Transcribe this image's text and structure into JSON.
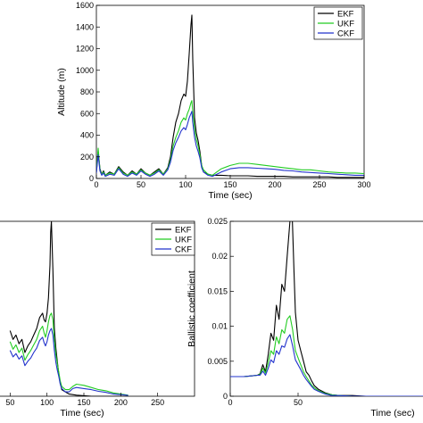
{
  "chart_data": [
    {
      "type": "line",
      "title": "",
      "xlabel": "Time (sec)",
      "ylabel": "Altitude (m)",
      "xlim": [
        0,
        300
      ],
      "ylim": [
        0,
        1600
      ],
      "xticks": [
        0,
        50,
        100,
        150,
        200,
        250,
        300
      ],
      "yticks": [
        0,
        200,
        400,
        600,
        800,
        1000,
        1200,
        1400,
        1600
      ],
      "grid": false,
      "legend": "top-right",
      "series": [
        {
          "name": "EKF",
          "color": "#000000",
          "x": [
            0,
            2,
            4,
            6,
            8,
            10,
            15,
            20,
            25,
            30,
            35,
            40,
            45,
            50,
            55,
            60,
            65,
            70,
            75,
            80,
            83,
            86,
            89,
            92,
            95,
            98,
            100,
            102,
            104,
            106,
            107,
            108,
            110,
            112,
            114,
            116,
            118,
            120,
            125,
            130,
            140,
            150,
            160,
            170,
            180,
            190,
            200,
            210,
            220,
            230,
            240,
            250,
            260,
            270,
            280,
            290,
            300
          ],
          "y": [
            60,
            250,
            90,
            40,
            70,
            30,
            60,
            40,
            110,
            60,
            30,
            70,
            40,
            90,
            50,
            30,
            60,
            90,
            40,
            100,
            200,
            380,
            520,
            600,
            720,
            780,
            760,
            900,
            1150,
            1420,
            1510,
            1100,
            560,
            420,
            350,
            250,
            120,
            60,
            40,
            30,
            30,
            25,
            25,
            25,
            20,
            20,
            20,
            20,
            15,
            15,
            15,
            15,
            15,
            10,
            10,
            10,
            10
          ]
        },
        {
          "name": "UKF",
          "color": "#22cc22",
          "x": [
            0,
            2,
            4,
            6,
            8,
            10,
            15,
            20,
            25,
            30,
            35,
            40,
            45,
            50,
            55,
            60,
            65,
            70,
            75,
            80,
            83,
            86,
            89,
            92,
            95,
            98,
            100,
            102,
            104,
            106,
            107,
            108,
            110,
            112,
            114,
            116,
            118,
            120,
            125,
            130,
            135,
            140,
            150,
            160,
            170,
            180,
            190,
            200,
            210,
            220,
            230,
            240,
            250,
            260,
            270,
            280,
            290,
            300
          ],
          "y": [
            60,
            280,
            80,
            40,
            60,
            30,
            50,
            40,
            100,
            50,
            30,
            60,
            40,
            80,
            50,
            30,
            50,
            80,
            40,
            90,
            170,
            300,
            380,
            440,
            520,
            560,
            540,
            600,
            640,
            700,
            720,
            620,
            460,
            360,
            300,
            220,
            120,
            80,
            40,
            30,
            60,
            90,
            120,
            140,
            140,
            130,
            120,
            110,
            100,
            90,
            80,
            80,
            70,
            60,
            55,
            50,
            50,
            45
          ]
        },
        {
          "name": "CKF",
          "color": "#2233cc",
          "x": [
            0,
            2,
            4,
            6,
            8,
            10,
            15,
            20,
            25,
            30,
            35,
            40,
            45,
            50,
            55,
            60,
            65,
            70,
            75,
            80,
            83,
            86,
            89,
            92,
            95,
            98,
            100,
            102,
            104,
            106,
            107,
            108,
            110,
            112,
            114,
            116,
            118,
            120,
            125,
            130,
            135,
            140,
            150,
            160,
            170,
            180,
            190,
            200,
            210,
            220,
            230,
            240,
            250,
            260,
            270,
            280,
            290,
            300
          ],
          "y": [
            50,
            220,
            70,
            30,
            50,
            20,
            40,
            30,
            90,
            40,
            20,
            50,
            30,
            70,
            40,
            20,
            40,
            70,
            30,
            80,
            150,
            260,
            330,
            380,
            440,
            470,
            450,
            500,
            560,
            600,
            620,
            520,
            380,
            300,
            250,
            190,
            100,
            60,
            30,
            20,
            40,
            60,
            90,
            100,
            100,
            95,
            90,
            85,
            75,
            70,
            60,
            55,
            50,
            45,
            40,
            35,
            30,
            30
          ]
        }
      ]
    },
    {
      "type": "line",
      "title": "",
      "xlabel": "Time (sec)",
      "ylabel": "",
      "xlim": [
        0,
        300
      ],
      "ylim": [
        0,
        1600
      ],
      "xticks": [
        50,
        100,
        150,
        200,
        250
      ],
      "xtick_labels": [
        "50",
        "100",
        "150",
        "200",
        "250"
      ],
      "grid": false,
      "legend": "top-right",
      "series": [
        {
          "name": "EKF",
          "color": "#000000",
          "x": [
            50,
            54,
            58,
            62,
            66,
            70,
            74,
            78,
            82,
            86,
            90,
            94,
            96,
            98,
            100,
            102,
            104,
            105,
            106,
            108,
            110,
            112,
            114,
            116,
            118,
            120,
            125,
            130,
            140,
            150,
            160,
            170,
            180,
            190,
            200,
            210
          ],
          "y": [
            600,
            520,
            560,
            480,
            520,
            400,
            460,
            500,
            560,
            620,
            720,
            760,
            700,
            680,
            760,
            900,
            1200,
            1500,
            1600,
            1150,
            620,
            440,
            320,
            200,
            120,
            60,
            40,
            20,
            10,
            5,
            0,
            0,
            0,
            0,
            0,
            0
          ]
        },
        {
          "name": "UKF",
          "color": "#22cc22",
          "x": [
            50,
            54,
            58,
            62,
            66,
            70,
            74,
            78,
            82,
            86,
            90,
            94,
            96,
            98,
            100,
            102,
            104,
            106,
            108,
            110,
            112,
            114,
            116,
            118,
            120,
            125,
            130,
            135,
            140,
            150,
            160,
            170,
            180,
            190,
            200,
            210
          ],
          "y": [
            500,
            430,
            470,
            400,
            440,
            330,
            380,
            420,
            470,
            520,
            600,
            640,
            580,
            540,
            600,
            680,
            740,
            760,
            700,
            520,
            380,
            300,
            220,
            140,
            90,
            60,
            60,
            90,
            110,
            100,
            80,
            60,
            50,
            30,
            20,
            10
          ]
        },
        {
          "name": "CKF",
          "color": "#2233cc",
          "x": [
            50,
            54,
            58,
            62,
            66,
            70,
            74,
            78,
            82,
            86,
            90,
            94,
            96,
            98,
            100,
            102,
            104,
            106,
            108,
            110,
            112,
            114,
            116,
            118,
            120,
            125,
            130,
            135,
            140,
            150,
            160,
            170,
            180,
            190,
            200,
            210
          ],
          "y": [
            420,
            360,
            390,
            340,
            370,
            280,
            320,
            350,
            400,
            440,
            510,
            540,
            490,
            460,
            500,
            560,
            600,
            620,
            560,
            420,
            310,
            240,
            180,
            110,
            70,
            40,
            40,
            70,
            80,
            70,
            60,
            45,
            35,
            20,
            15,
            8
          ]
        }
      ]
    },
    {
      "type": "line",
      "title": "",
      "xlabel": "Time (sec)",
      "ylabel": "Ballistic coefficient",
      "xlim": [
        0,
        150
      ],
      "ylim": [
        0,
        0.025
      ],
      "yticks": [
        0,
        0.005,
        0.01,
        0.015,
        0.02,
        0.025
      ],
      "ytick_labels": [
        "0",
        "0.005",
        "0.01",
        "0.015",
        "0.02",
        "0.025"
      ],
      "xticks": [
        0,
        50
      ],
      "grid": false,
      "legend": "none",
      "series": [
        {
          "name": "EKF",
          "color": "#000000",
          "x": [
            0,
            5,
            10,
            15,
            20,
            22,
            24,
            26,
            28,
            30,
            32,
            34,
            36,
            38,
            40,
            42,
            44,
            45,
            46,
            47,
            48,
            50,
            52,
            54,
            56,
            58,
            60,
            62,
            65,
            70,
            75,
            80,
            90,
            100,
            110,
            120,
            130,
            140,
            150
          ],
          "y": [
            0.0028,
            0.0028,
            0.0028,
            0.0029,
            0.003,
            0.0032,
            0.0045,
            0.0035,
            0.006,
            0.009,
            0.008,
            0.013,
            0.011,
            0.016,
            0.015,
            0.02,
            0.025,
            0.0298,
            0.024,
            0.018,
            0.012,
            0.008,
            0.0065,
            0.005,
            0.0035,
            0.003,
            0.0022,
            0.0015,
            0.001,
            0.0005,
            0.0002,
            0.0001,
            0.0001,
            0,
            0,
            0,
            0,
            0,
            0
          ]
        },
        {
          "name": "UKF",
          "color": "#22cc22",
          "x": [
            0,
            5,
            10,
            15,
            20,
            22,
            24,
            26,
            28,
            30,
            32,
            34,
            36,
            38,
            40,
            42,
            44,
            45,
            46,
            47,
            48,
            50,
            52,
            54,
            56,
            58,
            60,
            62,
            65,
            70,
            75,
            80,
            90,
            100,
            110,
            120,
            130,
            140,
            150
          ],
          "y": [
            0.0028,
            0.0028,
            0.0028,
            0.0029,
            0.003,
            0.0031,
            0.004,
            0.0033,
            0.0048,
            0.0065,
            0.006,
            0.0085,
            0.0075,
            0.0095,
            0.009,
            0.011,
            0.0115,
            0.0105,
            0.0095,
            0.008,
            0.0065,
            0.0055,
            0.0045,
            0.0035,
            0.0028,
            0.0022,
            0.0016,
            0.0012,
            0.0008,
            0.0004,
            0.0002,
            0.0001,
            0,
            0,
            0,
            0,
            0,
            0,
            0
          ]
        },
        {
          "name": "CKF",
          "color": "#2233cc",
          "x": [
            0,
            5,
            10,
            15,
            20,
            22,
            24,
            26,
            28,
            30,
            32,
            34,
            36,
            38,
            40,
            42,
            44,
            45,
            46,
            47,
            48,
            50,
            52,
            54,
            56,
            58,
            60,
            62,
            65,
            70,
            75,
            80,
            90,
            100,
            110,
            120,
            130,
            140,
            150
          ],
          "y": [
            0.0028,
            0.0028,
            0.0028,
            0.0029,
            0.003,
            0.003,
            0.0036,
            0.003,
            0.004,
            0.0052,
            0.0048,
            0.0065,
            0.006,
            0.0072,
            0.007,
            0.0082,
            0.0088,
            0.008,
            0.0072,
            0.0062,
            0.0052,
            0.0045,
            0.0038,
            0.003,
            0.0024,
            0.0019,
            0.0014,
            0.001,
            0.0007,
            0.0003,
            0.0001,
            0.0001,
            0,
            0,
            0,
            0,
            0,
            0,
            0
          ]
        }
      ]
    }
  ]
}
